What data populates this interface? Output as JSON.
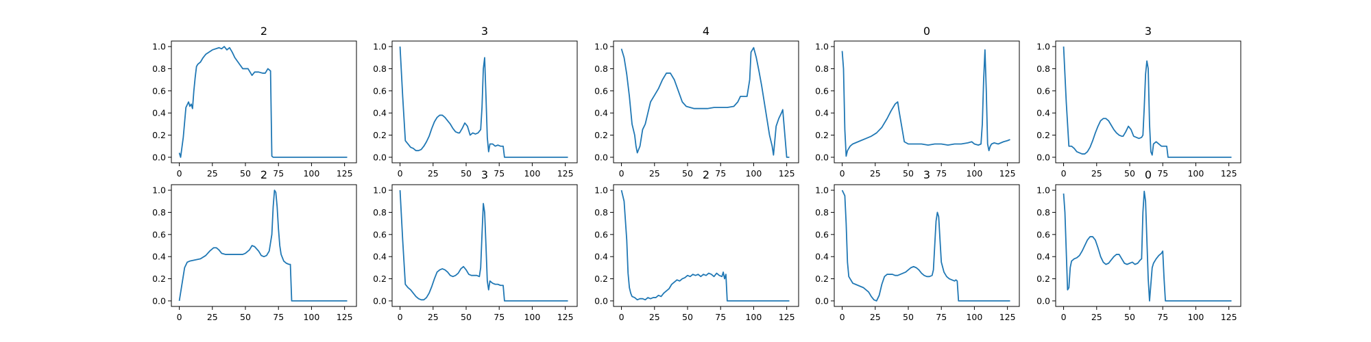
{
  "chart_data": [
    {
      "type": "line",
      "title": "2",
      "xlim": [
        -6,
        134
      ],
      "ylim": [
        -0.05,
        1.05
      ],
      "xticks": [
        0,
        25,
        50,
        75,
        100,
        125
      ],
      "yticks": [
        "0.0",
        "0.2",
        "0.4",
        "0.6",
        "0.8",
        "1.0"
      ],
      "x": [
        0,
        1,
        3,
        5,
        7,
        8,
        9,
        10,
        11,
        12,
        13,
        14,
        16,
        18,
        20,
        25,
        30,
        32,
        34,
        36,
        38,
        40,
        42,
        45,
        48,
        52,
        55,
        57,
        60,
        63,
        65,
        67,
        68,
        69,
        70,
        71,
        100,
        127
      ],
      "y": [
        0.04,
        0.0,
        0.18,
        0.45,
        0.5,
        0.46,
        0.48,
        0.44,
        0.6,
        0.72,
        0.82,
        0.84,
        0.86,
        0.9,
        0.93,
        0.97,
        0.99,
        0.98,
        1.0,
        0.97,
        0.99,
        0.95,
        0.9,
        0.85,
        0.8,
        0.8,
        0.74,
        0.77,
        0.77,
        0.76,
        0.76,
        0.8,
        0.79,
        0.78,
        0.01,
        0.0,
        0.0,
        0.0
      ]
    },
    {
      "type": "line",
      "title": "3",
      "xlim": [
        -6,
        134
      ],
      "ylim": [
        -0.05,
        1.05
      ],
      "xticks": [
        0,
        25,
        50,
        75,
        100,
        125
      ],
      "yticks": [
        "0.0",
        "0.2",
        "0.4",
        "0.6",
        "0.8",
        "1.0"
      ],
      "x": [
        0,
        2,
        4,
        6,
        8,
        10,
        12,
        14,
        16,
        18,
        20,
        22,
        24,
        26,
        28,
        30,
        32,
        34,
        36,
        38,
        40,
        42,
        44,
        45,
        47,
        49,
        51,
        53,
        55,
        57,
        59,
        61,
        62,
        63,
        64,
        65,
        66,
        67,
        68,
        70,
        72,
        74,
        76,
        78,
        79,
        80,
        127
      ],
      "y": [
        1.0,
        0.55,
        0.15,
        0.12,
        0.09,
        0.08,
        0.06,
        0.06,
        0.07,
        0.1,
        0.14,
        0.19,
        0.26,
        0.32,
        0.36,
        0.38,
        0.38,
        0.36,
        0.33,
        0.3,
        0.26,
        0.23,
        0.22,
        0.22,
        0.26,
        0.31,
        0.28,
        0.2,
        0.22,
        0.21,
        0.22,
        0.25,
        0.45,
        0.8,
        0.9,
        0.55,
        0.18,
        0.05,
        0.12,
        0.12,
        0.1,
        0.11,
        0.1,
        0.1,
        0.0,
        0.0,
        0.0
      ]
    },
    {
      "type": "line",
      "title": "4",
      "xlim": [
        -6,
        134
      ],
      "ylim": [
        -0.05,
        1.05
      ],
      "xticks": [
        0,
        25,
        50,
        75,
        100,
        125
      ],
      "yticks": [
        "0.0",
        "0.2",
        "0.4",
        "0.6",
        "0.8",
        "1.0"
      ],
      "x": [
        0,
        2,
        4,
        6,
        8,
        10,
        11,
        12,
        14,
        16,
        18,
        20,
        22,
        25,
        28,
        31,
        34,
        37,
        40,
        43,
        46,
        49,
        52,
        55,
        60,
        65,
        70,
        75,
        80,
        85,
        88,
        90,
        93,
        95,
        97,
        98,
        100,
        102,
        104,
        106,
        108,
        110,
        112,
        114,
        115,
        117,
        119,
        121,
        122,
        125,
        127
      ],
      "y": [
        0.98,
        0.9,
        0.75,
        0.55,
        0.3,
        0.2,
        0.1,
        0.04,
        0.1,
        0.25,
        0.3,
        0.4,
        0.5,
        0.56,
        0.62,
        0.7,
        0.76,
        0.76,
        0.7,
        0.6,
        0.5,
        0.46,
        0.45,
        0.44,
        0.44,
        0.44,
        0.45,
        0.45,
        0.45,
        0.46,
        0.5,
        0.55,
        0.55,
        0.55,
        0.7,
        0.95,
        0.99,
        0.9,
        0.78,
        0.65,
        0.5,
        0.35,
        0.2,
        0.1,
        0.02,
        0.28,
        0.35,
        0.4,
        0.43,
        0.0,
        0.0
      ]
    },
    {
      "type": "line",
      "title": "0",
      "xlim": [
        -6,
        134
      ],
      "ylim": [
        -0.05,
        1.05
      ],
      "xticks": [
        0,
        25,
        50,
        75,
        100,
        125
      ],
      "yticks": [
        "0.0",
        "0.2",
        "0.4",
        "0.6",
        "0.8",
        "1.0"
      ],
      "x": [
        0,
        1,
        2,
        3,
        4,
        6,
        8,
        10,
        14,
        18,
        22,
        26,
        30,
        34,
        37,
        40,
        42,
        43,
        45,
        47,
        50,
        55,
        60,
        65,
        70,
        75,
        80,
        85,
        90,
        95,
        98,
        100,
        103,
        105,
        106,
        107,
        108,
        109,
        110,
        111,
        112,
        113,
        115,
        118,
        122,
        125,
        127
      ],
      "y": [
        0.96,
        0.8,
        0.25,
        0.01,
        0.06,
        0.1,
        0.12,
        0.13,
        0.15,
        0.17,
        0.19,
        0.22,
        0.27,
        0.35,
        0.42,
        0.48,
        0.5,
        0.42,
        0.28,
        0.14,
        0.12,
        0.12,
        0.12,
        0.11,
        0.12,
        0.12,
        0.11,
        0.12,
        0.12,
        0.13,
        0.14,
        0.12,
        0.11,
        0.12,
        0.3,
        0.7,
        0.97,
        0.6,
        0.12,
        0.06,
        0.1,
        0.12,
        0.13,
        0.12,
        0.14,
        0.15,
        0.16
      ]
    },
    {
      "type": "line",
      "title": "3",
      "xlim": [
        -6,
        134
      ],
      "ylim": [
        -0.05,
        1.05
      ],
      "xticks": [
        0,
        25,
        50,
        75,
        100,
        125
      ],
      "yticks": [
        "0.0",
        "0.2",
        "0.4",
        "0.6",
        "0.8",
        "1.0"
      ],
      "x": [
        0,
        2,
        4,
        6,
        8,
        10,
        12,
        14,
        16,
        18,
        20,
        22,
        24,
        26,
        28,
        30,
        32,
        34,
        36,
        38,
        40,
        42,
        44,
        45,
        47,
        49,
        51,
        53,
        55,
        57,
        59,
        60,
        61,
        62,
        63,
        64,
        65,
        66,
        67,
        68,
        70,
        72,
        74,
        76,
        78,
        79,
        80,
        127
      ],
      "y": [
        1.0,
        0.5,
        0.1,
        0.1,
        0.08,
        0.05,
        0.04,
        0.03,
        0.03,
        0.05,
        0.09,
        0.15,
        0.22,
        0.28,
        0.33,
        0.35,
        0.35,
        0.33,
        0.29,
        0.25,
        0.22,
        0.2,
        0.19,
        0.19,
        0.23,
        0.28,
        0.25,
        0.19,
        0.18,
        0.17,
        0.18,
        0.2,
        0.45,
        0.75,
        0.87,
        0.8,
        0.3,
        0.05,
        0.02,
        0.12,
        0.14,
        0.12,
        0.1,
        0.1,
        0.1,
        0.0,
        0.0,
        0.0
      ]
    },
    {
      "type": "line",
      "title": "2",
      "xlim": [
        -6,
        134
      ],
      "ylim": [
        -0.05,
        1.05
      ],
      "xticks": [
        0,
        25,
        50,
        75,
        100,
        125
      ],
      "yticks": [
        "0.0",
        "0.2",
        "0.4",
        "0.6",
        "0.8",
        "1.0"
      ],
      "x": [
        0,
        2,
        4,
        6,
        8,
        12,
        16,
        20,
        23,
        26,
        28,
        30,
        32,
        35,
        40,
        45,
        48,
        50,
        53,
        55,
        57,
        60,
        62,
        64,
        66,
        68,
        70,
        71,
        72,
        73,
        74,
        75,
        76,
        77,
        79,
        81,
        83,
        84,
        85,
        86,
        100,
        127
      ],
      "y": [
        0.0,
        0.15,
        0.3,
        0.35,
        0.36,
        0.37,
        0.38,
        0.41,
        0.45,
        0.48,
        0.48,
        0.46,
        0.43,
        0.42,
        0.42,
        0.42,
        0.42,
        0.43,
        0.46,
        0.5,
        0.49,
        0.45,
        0.41,
        0.4,
        0.41,
        0.45,
        0.6,
        0.85,
        1.0,
        0.98,
        0.85,
        0.65,
        0.5,
        0.42,
        0.36,
        0.34,
        0.33,
        0.33,
        0.0,
        0.0,
        0.0,
        0.0
      ]
    },
    {
      "type": "line",
      "title": "3",
      "xlim": [
        -6,
        134
      ],
      "ylim": [
        -0.05,
        1.05
      ],
      "xticks": [
        0,
        25,
        50,
        75,
        100,
        125
      ],
      "yticks": [
        "0.0",
        "0.2",
        "0.4",
        "0.6",
        "0.8",
        "1.0"
      ],
      "x": [
        0,
        2,
        4,
        6,
        8,
        10,
        12,
        14,
        16,
        18,
        20,
        22,
        24,
        26,
        28,
        30,
        32,
        34,
        36,
        38,
        40,
        42,
        44,
        46,
        48,
        50,
        52,
        54,
        56,
        58,
        60,
        61,
        62,
        63,
        64,
        65,
        66,
        67,
        68,
        70,
        72,
        74,
        76,
        78,
        79,
        80,
        127
      ],
      "y": [
        1.0,
        0.55,
        0.15,
        0.12,
        0.1,
        0.07,
        0.04,
        0.02,
        0.01,
        0.01,
        0.03,
        0.07,
        0.13,
        0.2,
        0.26,
        0.28,
        0.29,
        0.28,
        0.26,
        0.23,
        0.22,
        0.23,
        0.25,
        0.29,
        0.31,
        0.28,
        0.24,
        0.23,
        0.23,
        0.23,
        0.22,
        0.3,
        0.6,
        0.88,
        0.8,
        0.5,
        0.18,
        0.1,
        0.18,
        0.16,
        0.15,
        0.15,
        0.14,
        0.14,
        0.0,
        0.0,
        0.0
      ]
    },
    {
      "type": "line",
      "title": "2",
      "xlim": [
        -6,
        134
      ],
      "ylim": [
        -0.05,
        1.05
      ],
      "xticks": [
        0,
        25,
        50,
        75,
        100,
        125
      ],
      "yticks": [
        "0.0",
        "0.2",
        "0.4",
        "0.6",
        "0.8",
        "1.0"
      ],
      "x": [
        0,
        2,
        4,
        5,
        6,
        7,
        8,
        10,
        12,
        14,
        16,
        18,
        20,
        22,
        24,
        26,
        28,
        30,
        32,
        34,
        36,
        38,
        40,
        42,
        44,
        46,
        48,
        50,
        52,
        54,
        56,
        58,
        60,
        62,
        64,
        66,
        68,
        70,
        72,
        74,
        76,
        77,
        78,
        79,
        80,
        81,
        100,
        127
      ],
      "y": [
        1.0,
        0.9,
        0.55,
        0.25,
        0.12,
        0.07,
        0.04,
        0.03,
        0.01,
        0.02,
        0.02,
        0.01,
        0.03,
        0.02,
        0.03,
        0.03,
        0.05,
        0.04,
        0.07,
        0.09,
        0.11,
        0.15,
        0.17,
        0.19,
        0.18,
        0.2,
        0.21,
        0.23,
        0.22,
        0.24,
        0.23,
        0.24,
        0.22,
        0.24,
        0.23,
        0.25,
        0.24,
        0.22,
        0.25,
        0.23,
        0.22,
        0.26,
        0.2,
        0.24,
        0.0,
        0.0,
        0.0,
        0.0
      ]
    },
    {
      "type": "line",
      "title": "3",
      "xlim": [
        -6,
        134
      ],
      "ylim": [
        -0.05,
        1.05
      ],
      "xticks": [
        0,
        25,
        50,
        75,
        100,
        125
      ],
      "yticks": [
        "0.0",
        "0.2",
        "0.4",
        "0.6",
        "0.8",
        "1.0"
      ],
      "x": [
        0,
        2,
        3,
        4,
        5,
        6,
        8,
        10,
        12,
        14,
        16,
        18,
        20,
        22,
        24,
        26,
        28,
        30,
        32,
        34,
        36,
        38,
        40,
        42,
        44,
        46,
        48,
        50,
        52,
        54,
        56,
        58,
        60,
        62,
        64,
        66,
        68,
        69,
        70,
        71,
        72,
        73,
        74,
        75,
        77,
        79,
        81,
        83,
        85,
        86,
        87,
        88,
        100,
        127
      ],
      "y": [
        1.0,
        0.95,
        0.7,
        0.35,
        0.22,
        0.2,
        0.16,
        0.15,
        0.14,
        0.13,
        0.12,
        0.1,
        0.08,
        0.04,
        0.01,
        0.0,
        0.05,
        0.15,
        0.22,
        0.24,
        0.24,
        0.24,
        0.23,
        0.23,
        0.24,
        0.25,
        0.26,
        0.28,
        0.3,
        0.31,
        0.3,
        0.28,
        0.25,
        0.23,
        0.22,
        0.22,
        0.23,
        0.28,
        0.5,
        0.72,
        0.8,
        0.76,
        0.55,
        0.35,
        0.26,
        0.22,
        0.2,
        0.19,
        0.18,
        0.19,
        0.18,
        0.0,
        0.0,
        0.0
      ]
    },
    {
      "type": "line",
      "title": "0",
      "xlim": [
        -6,
        134
      ],
      "ylim": [
        -0.05,
        1.05
      ],
      "xticks": [
        0,
        25,
        50,
        75,
        100,
        125
      ],
      "yticks": [
        "0.0",
        "0.2",
        "0.4",
        "0.6",
        "0.8",
        "1.0"
      ],
      "x": [
        0,
        1,
        2,
        3,
        4,
        5,
        6,
        8,
        10,
        12,
        14,
        16,
        18,
        20,
        22,
        24,
        26,
        28,
        30,
        32,
        34,
        36,
        38,
        40,
        42,
        44,
        46,
        48,
        50,
        52,
        54,
        56,
        58,
        59,
        60,
        61,
        62,
        63,
        64,
        65,
        66,
        67,
        68,
        70,
        72,
        74,
        75,
        76,
        77,
        100,
        127
      ],
      "y": [
        0.97,
        0.8,
        0.45,
        0.1,
        0.12,
        0.3,
        0.36,
        0.38,
        0.39,
        0.41,
        0.45,
        0.5,
        0.55,
        0.58,
        0.58,
        0.55,
        0.48,
        0.4,
        0.35,
        0.33,
        0.34,
        0.37,
        0.4,
        0.42,
        0.42,
        0.38,
        0.34,
        0.33,
        0.34,
        0.35,
        0.33,
        0.34,
        0.37,
        0.38,
        0.8,
        0.99,
        0.9,
        0.55,
        0.2,
        0.0,
        0.15,
        0.3,
        0.34,
        0.38,
        0.41,
        0.43,
        0.45,
        0.2,
        0.0,
        0.0,
        0.0
      ]
    }
  ]
}
